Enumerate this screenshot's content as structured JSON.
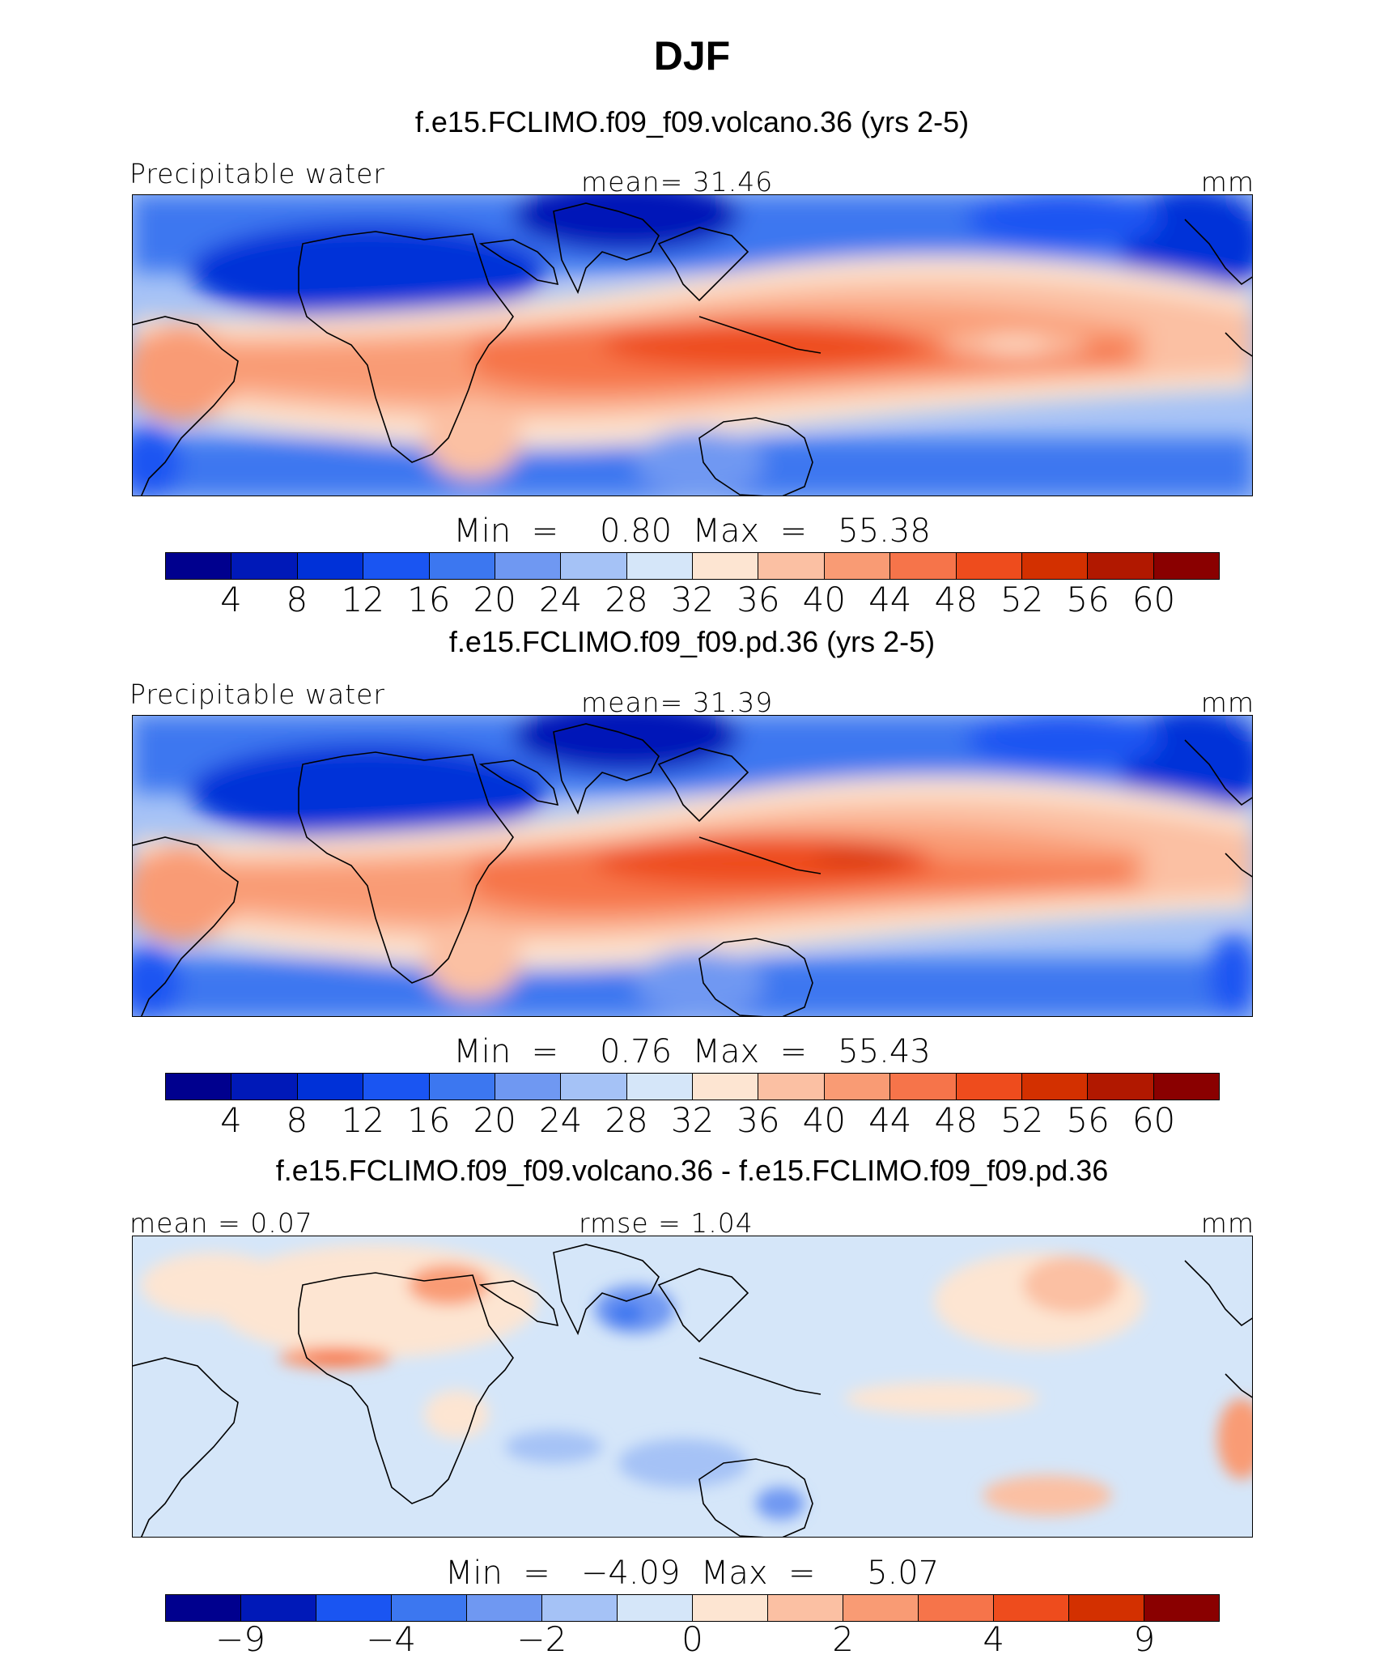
{
  "title": "DJF",
  "panels": [
    {
      "title": "f.e15.FCLIMO.f09_f09.volcano.36 (yrs 2-5)",
      "left_label": "Precipitable water",
      "center_label": "mean=   31.46",
      "right_label": "mm",
      "minmax": "Min  =    0.80  Max  =   55.38",
      "colorbar": {
        "colors": [
          "#00008e",
          "#0019b8",
          "#0031d8",
          "#1a55f2",
          "#3c77f0",
          "#6f98f2",
          "#a5c2f6",
          "#d5e6f9",
          "#fde5d2",
          "#fbc0a3",
          "#f99b74",
          "#f6744a",
          "#ee4c1d",
          "#d33000",
          "#b11800",
          "#8a0000"
        ],
        "ticks": [
          "4",
          "8",
          "12",
          "16",
          "20",
          "24",
          "28",
          "32",
          "36",
          "40",
          "44",
          "48",
          "52",
          "56",
          "60"
        ]
      }
    },
    {
      "title": "f.e15.FCLIMO.f09_f09.pd.36 (yrs 2-5)",
      "left_label": "Precipitable water",
      "center_label": "mean=   31.39",
      "right_label": "mm",
      "minmax": "Min  =    0.76  Max  =   55.43",
      "colorbar": {
        "colors": [
          "#00008e",
          "#0019b8",
          "#0031d8",
          "#1a55f2",
          "#3c77f0",
          "#6f98f2",
          "#a5c2f6",
          "#d5e6f9",
          "#fde5d2",
          "#fbc0a3",
          "#f99b74",
          "#f6744a",
          "#ee4c1d",
          "#d33000",
          "#b11800",
          "#8a0000"
        ],
        "ticks": [
          "4",
          "8",
          "12",
          "16",
          "20",
          "24",
          "28",
          "32",
          "36",
          "40",
          "44",
          "48",
          "52",
          "56",
          "60"
        ]
      }
    },
    {
      "title": "f.e15.FCLIMO.f09_f09.volcano.36 - f.e15.FCLIMO.f09_f09.pd.36",
      "left_label": "mean =    0.07",
      "center_label": "rmse =    1.04",
      "right_label": "mm",
      "minmax": "Min  =   −4.09  Max  =     5.07",
      "colorbar": {
        "colors": [
          "#00008e",
          "#0019b8",
          "#1a55f2",
          "#3c77f0",
          "#6f98f2",
          "#a5c2f6",
          "#d5e6f9",
          "#fde5d2",
          "#fbc0a3",
          "#f99b74",
          "#f6744a",
          "#ee4c1d",
          "#d33000",
          "#8a0000"
        ],
        "ticks": [
          "−9",
          "−4",
          "−2",
          "0",
          "2",
          "4",
          "9"
        ]
      }
    }
  ],
  "chart_data": [
    {
      "type": "heatmap",
      "title": "f.e15.FCLIMO.f09_f09.volcano.36 (yrs 2-5)",
      "variable": "Precipitable water",
      "units": "mm",
      "mean": 31.46,
      "min": 0.8,
      "max": 55.38,
      "contour_levels": [
        4,
        8,
        12,
        16,
        20,
        24,
        28,
        32,
        36,
        40,
        44,
        48,
        52,
        56,
        60
      ]
    },
    {
      "type": "heatmap",
      "title": "f.e15.FCLIMO.f09_f09.pd.36 (yrs 2-5)",
      "variable": "Precipitable water",
      "units": "mm",
      "mean": 31.39,
      "min": 0.76,
      "max": 55.43,
      "contour_levels": [
        4,
        8,
        12,
        16,
        20,
        24,
        28,
        32,
        36,
        40,
        44,
        48,
        52,
        56,
        60
      ]
    },
    {
      "type": "heatmap",
      "title": "f.e15.FCLIMO.f09_f09.volcano.36 - f.e15.FCLIMO.f09_f09.pd.36",
      "units": "mm",
      "mean": 0.07,
      "rmse": 1.04,
      "min": -4.09,
      "max": 5.07,
      "labeled_levels": [
        -9,
        -4,
        -2,
        0,
        2,
        4,
        9
      ]
    }
  ]
}
